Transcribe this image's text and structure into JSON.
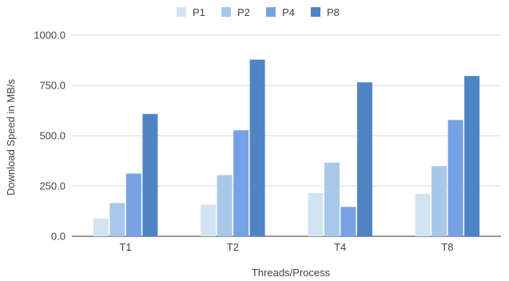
{
  "chart_data": {
    "type": "bar",
    "title": "",
    "xlabel": "Threads/Process",
    "ylabel": "Download Speed in MB/s",
    "categories": [
      "T1",
      "T2",
      "T4",
      "T8"
    ],
    "yticks": [
      "0.0",
      "250.0",
      "500.0",
      "750.0",
      "1000.0"
    ],
    "ylim": [
      0,
      1000
    ],
    "grid": true,
    "legend_position": "top-center",
    "series": [
      {
        "name": "P1",
        "color": "#d2e3f3",
        "values": [
          88,
          157,
          215,
          211
        ]
      },
      {
        "name": "P2",
        "color": "#a8c8e9",
        "values": [
          166,
          304,
          366,
          349
        ]
      },
      {
        "name": "P4",
        "color": "#77a1e5",
        "values": [
          312,
          527,
          146,
          578
        ]
      },
      {
        "name": "P8",
        "color": "#4f84c4",
        "values": [
          608,
          878,
          765,
          797
        ]
      }
    ]
  }
}
